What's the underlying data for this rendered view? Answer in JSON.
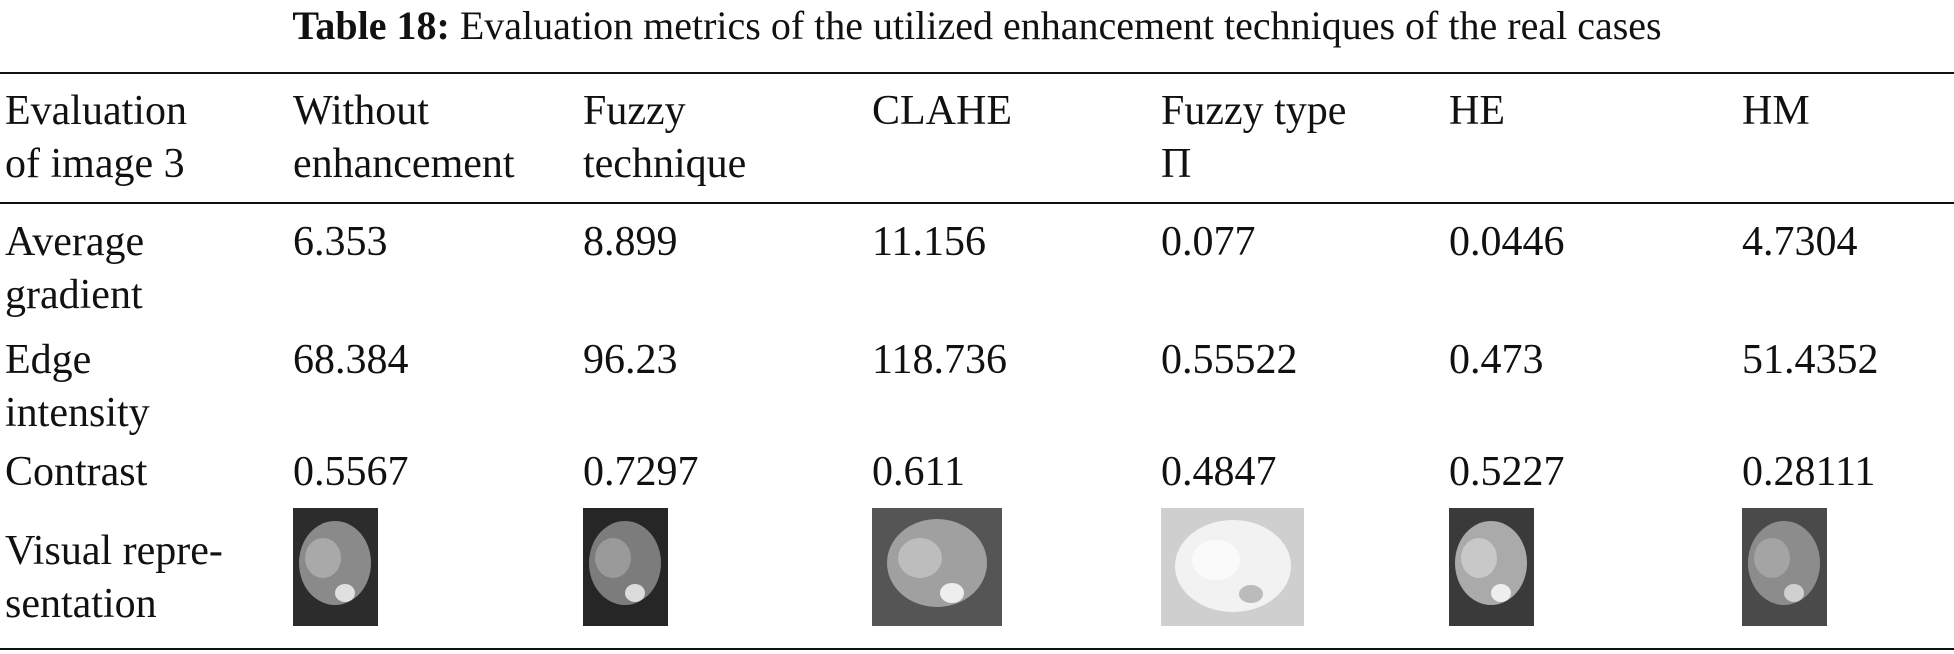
{
  "caption": {
    "label": "Table 18:",
    "text": "Evaluation metrics of the utilized enhancement techniques of the real cases"
  },
  "table": {
    "header": [
      "Evaluation\nof image 3",
      "Without\nenhancement",
      "Fuzzy\ntechnique",
      "CLAHE",
      "Fuzzy type\nΠ",
      "HE",
      "HM"
    ],
    "rows": [
      [
        "Average\ngradient",
        "6.353",
        "8.899",
        "11.156",
        "0.077",
        "0.0446",
        "4.7304"
      ],
      [
        "Edge\nintensity",
        "68.384",
        "96.23",
        "118.736",
        "0.55522",
        "0.473",
        "51.4352"
      ],
      [
        "Contrast",
        "0.5567",
        "0.7297",
        "0.611",
        "0.4847",
        "0.5227",
        "0.28111"
      ],
      [
        "Visual repre-\nsentation"
      ]
    ]
  }
}
